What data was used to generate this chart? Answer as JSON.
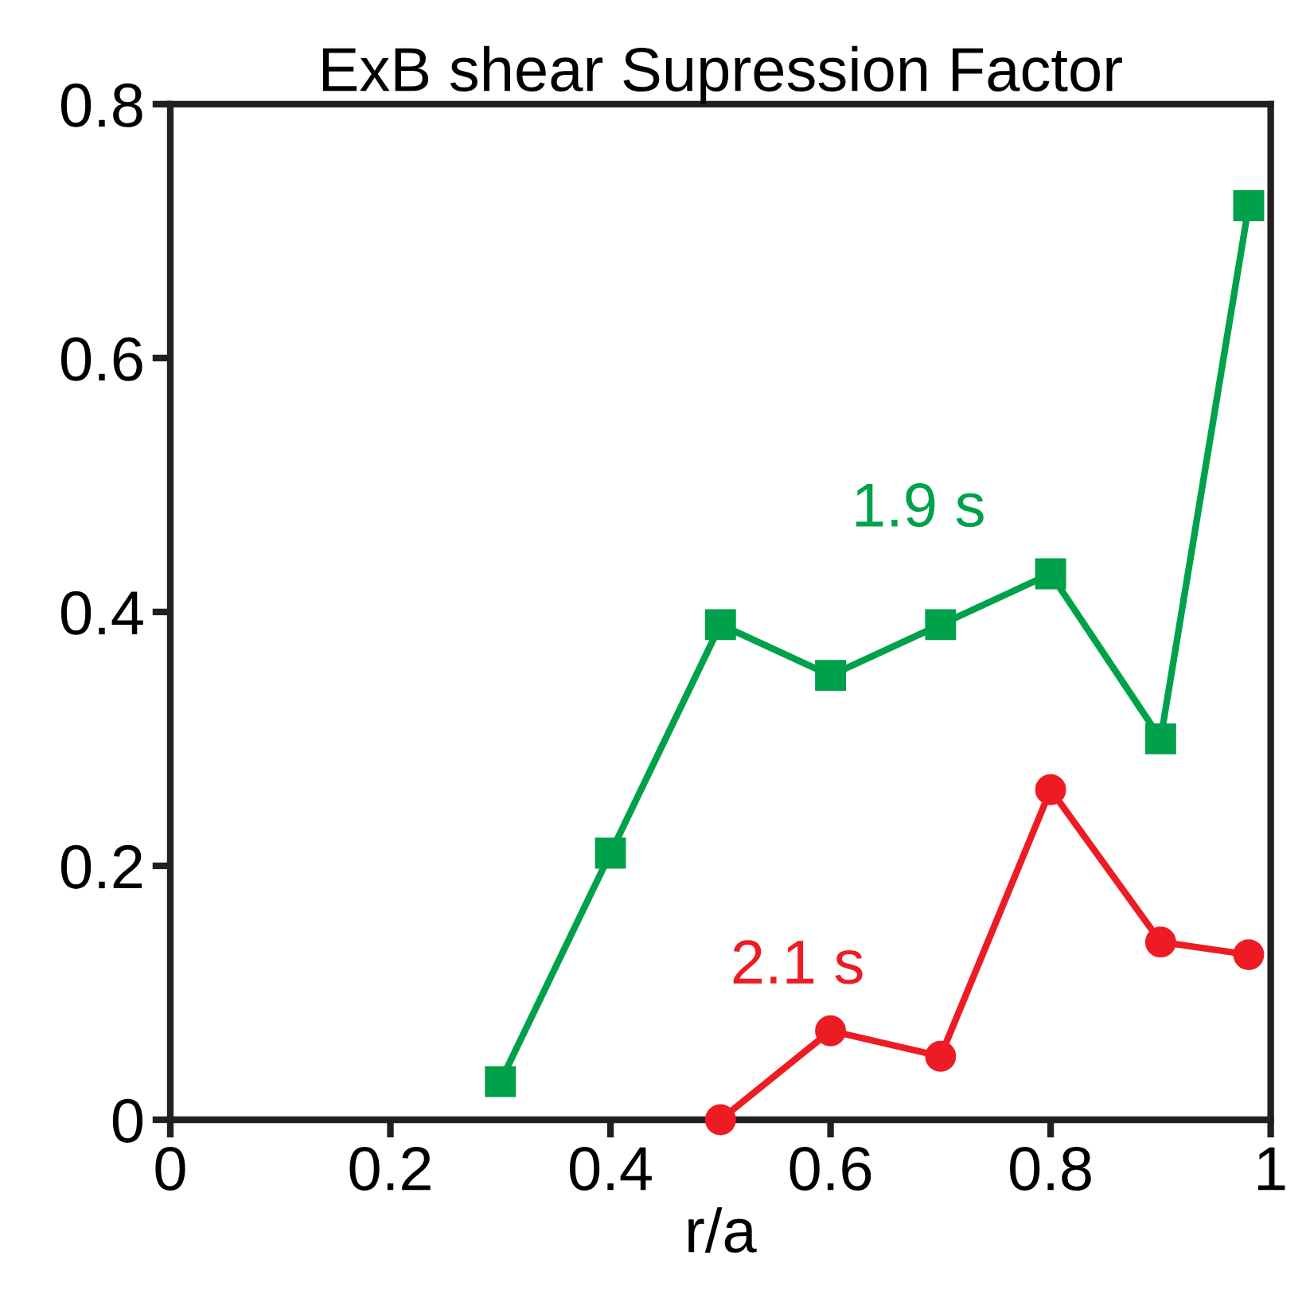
{
  "chart_data": {
    "type": "line",
    "title": "ExB shear Supression Factor",
    "xlabel": "r/a",
    "xlim": [
      0,
      1
    ],
    "xticks": [
      0,
      0.2,
      0.4,
      0.6,
      0.8,
      1
    ],
    "ylim": [
      0,
      0.8
    ],
    "yticks": [
      0,
      0.2,
      0.4,
      0.6,
      0.8
    ],
    "grid": false,
    "legend": false,
    "line_style": "solid",
    "series": [
      {
        "name": "1.9 s",
        "color": "#00a14b",
        "marker": "square",
        "x": [
          0.3,
          0.4,
          0.5,
          0.6,
          0.7,
          0.8,
          0.9,
          0.98
        ],
        "values": [
          0.03,
          0.21,
          0.39,
          0.35,
          0.39,
          0.43,
          0.3,
          0.72
        ]
      },
      {
        "name": "2.1 s",
        "color": "#ed1c24",
        "marker": "circle",
        "x": [
          0.5,
          0.6,
          0.7,
          0.8,
          0.9,
          0.98
        ],
        "values": [
          0.0,
          0.07,
          0.05,
          0.26,
          0.14,
          0.13
        ]
      }
    ]
  }
}
